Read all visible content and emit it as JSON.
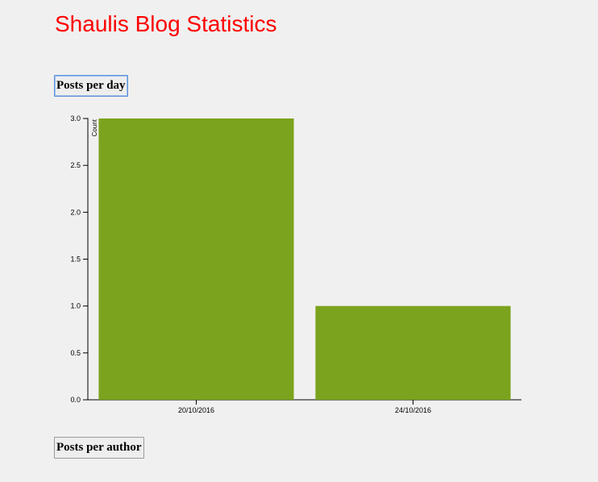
{
  "page": {
    "title": "Shaulis Blog Statistics"
  },
  "buttons": {
    "posts_per_day": "Posts per day",
    "posts_per_author": "Posts per author"
  },
  "chart_data": {
    "type": "bar",
    "categories": [
      "20/10/2016",
      "24/10/2016"
    ],
    "values": [
      3,
      1
    ],
    "title": "",
    "xlabel": "",
    "ylabel": "Count",
    "ylim": [
      0,
      3
    ],
    "yticks": [
      "0.0",
      "0.5",
      "1.0",
      "1.5",
      "2.0",
      "2.5",
      "3.0"
    ],
    "bar_color": "#7ba31d",
    "grid": false
  }
}
